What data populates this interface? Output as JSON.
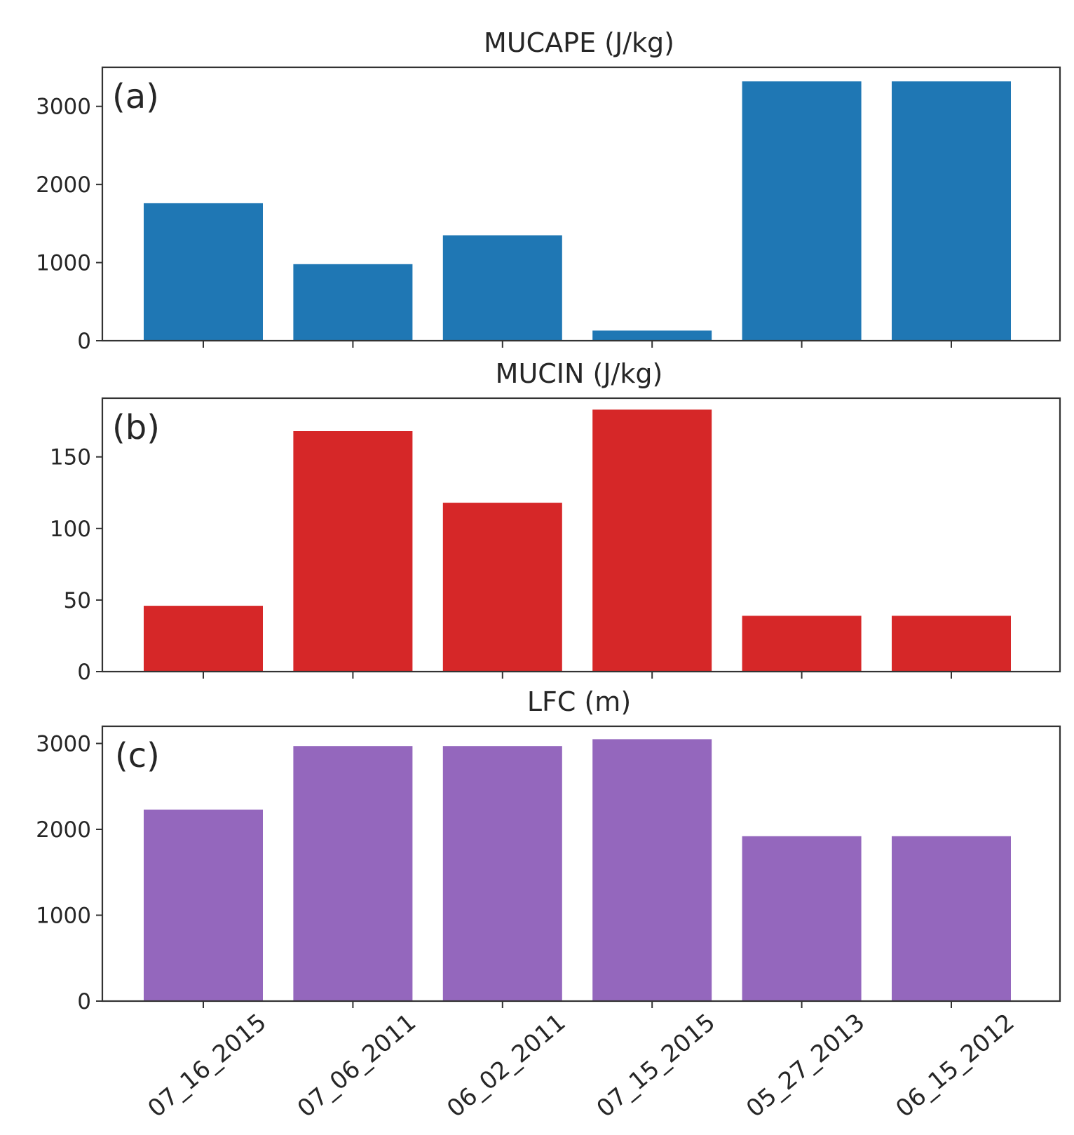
{
  "chart_data": [
    {
      "type": "bar",
      "title": "MUCAPE (J/kg)",
      "panel_label": "(a)",
      "categories": [
        "07_16_2015",
        "07_06_2011",
        "06_02_2011",
        "07_15_2015",
        "05_27_2013",
        "06_15_2012"
      ],
      "values": [
        1760,
        980,
        1350,
        130,
        3320,
        3320
      ],
      "ylim": [
        0,
        3500
      ],
      "yticks": [
        0,
        1000,
        2000,
        3000
      ],
      "color": "#1f77b4",
      "xlabel": "",
      "ylabel": ""
    },
    {
      "type": "bar",
      "title": "MUCIN (J/kg)",
      "panel_label": "(b)",
      "categories": [
        "07_16_2015",
        "07_06_2011",
        "06_02_2011",
        "07_15_2015",
        "05_27_2013",
        "06_15_2012"
      ],
      "values": [
        46,
        168,
        118,
        183,
        39,
        39
      ],
      "ylim": [
        0,
        191
      ],
      "yticks": [
        0,
        50,
        100,
        150
      ],
      "color": "#d62728",
      "xlabel": "",
      "ylabel": ""
    },
    {
      "type": "bar",
      "title": "LFC (m)",
      "panel_label": "(c)",
      "categories": [
        "07_16_2015",
        "07_06_2011",
        "06_02_2011",
        "07_15_2015",
        "05_27_2013",
        "06_15_2012"
      ],
      "values": [
        2230,
        2970,
        2970,
        3050,
        1920,
        1920
      ],
      "ylim": [
        0,
        3200
      ],
      "yticks": [
        0,
        1000,
        2000,
        3000
      ],
      "color": "#9467bd",
      "xlabel": "",
      "ylabel": ""
    }
  ]
}
